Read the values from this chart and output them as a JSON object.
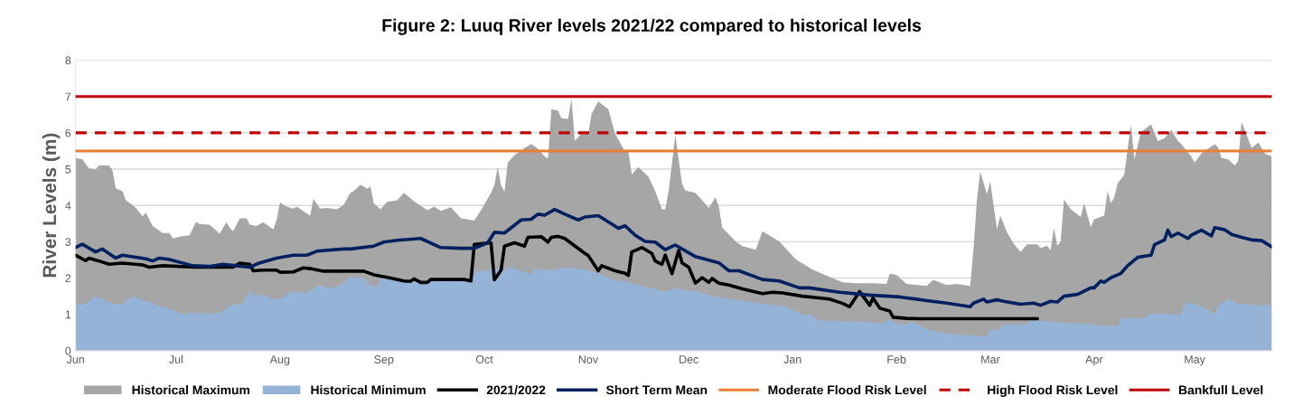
{
  "chart_data": {
    "type": "area",
    "title": "Figure 2: Luuq River levels 2021/22 compared to historical levels",
    "ylabel": "River Levels (m)",
    "xlim": [
      "2021-06-01",
      "2022-05-24"
    ],
    "xticks": [
      {
        "value": "2021-06-01",
        "label": "Jun"
      },
      {
        "value": "2021-07-01",
        "label": "Jul"
      },
      {
        "value": "2021-08-01",
        "label": "Aug"
      },
      {
        "value": "2021-09-01",
        "label": "Sep"
      },
      {
        "value": "2021-10-01",
        "label": "Oct"
      },
      {
        "value": "2021-11-01",
        "label": "Nov"
      },
      {
        "value": "2021-12-01",
        "label": "Dec"
      },
      {
        "value": "2022-01-01",
        "label": "Jan"
      },
      {
        "value": "2022-02-01",
        "label": "Feb"
      },
      {
        "value": "2022-03-01",
        "label": "Mar"
      },
      {
        "value": "2022-04-01",
        "label": "Apr"
      },
      {
        "value": "2022-05-01",
        "label": "May"
      }
    ],
    "ylim": [
      0,
      8
    ],
    "yticks": [
      0,
      1,
      2,
      3,
      4,
      5,
      6,
      7,
      8
    ],
    "grid": "y",
    "legend": "bottom",
    "series": [
      {
        "name": "Historical Maximum",
        "color": "#a6a6a6",
        "x": [
          "2021-06-01",
          "2021-06-03",
          "2021-06-05",
          "2021-06-07",
          "2021-06-08",
          "2021-06-11",
          "2021-06-12",
          "2021-06-13",
          "2021-06-15",
          "2021-06-16",
          "2021-06-18",
          "2021-06-19",
          "2021-06-21",
          "2021-06-22",
          "2021-06-24",
          "2021-06-27",
          "2021-06-29",
          "2021-06-30",
          "2021-07-02",
          "2021-07-05",
          "2021-07-07",
          "2021-07-08",
          "2021-07-11",
          "2021-07-14",
          "2021-07-16",
          "2021-07-17",
          "2021-07-18",
          "2021-07-20",
          "2021-07-22",
          "2021-07-23",
          "2021-07-25",
          "2021-07-27",
          "2021-07-30",
          "2021-07-31",
          "2021-08-01",
          "2021-08-03",
          "2021-08-05",
          "2021-08-06",
          "2021-08-10",
          "2021-08-11",
          "2021-08-13",
          "2021-08-15",
          "2021-08-18",
          "2021-08-20",
          "2021-08-22",
          "2021-08-23",
          "2021-08-25",
          "2021-08-27",
          "2021-08-28",
          "2021-08-29",
          "2021-08-31",
          "2021-09-02",
          "2021-09-05",
          "2021-09-07",
          "2021-09-10",
          "2021-09-14",
          "2021-09-16",
          "2021-09-18",
          "2021-09-21",
          "2021-09-24",
          "2021-09-28",
          "2021-09-30",
          "2021-10-03",
          "2021-10-04",
          "2021-10-05",
          "2021-10-06",
          "2021-10-07",
          "2021-10-08",
          "2021-10-10",
          "2021-10-13",
          "2021-10-15",
          "2021-10-17",
          "2021-10-19",
          "2021-10-20",
          "2021-10-21",
          "2021-10-23",
          "2021-10-24",
          "2021-10-26",
          "2021-10-27",
          "2021-10-28",
          "2021-10-30",
          "2021-11-01",
          "2021-11-02",
          "2021-11-04",
          "2021-11-07",
          "2021-11-09",
          "2021-11-12",
          "2021-11-13",
          "2021-11-14",
          "2021-11-16",
          "2021-11-19",
          "2021-11-21",
          "2021-11-23",
          "2021-11-24",
          "2021-11-25",
          "2021-11-27",
          "2021-11-29",
          "2021-11-30",
          "2021-12-03",
          "2021-12-05",
          "2021-12-07",
          "2021-12-09",
          "2021-12-10",
          "2021-12-11",
          "2021-12-15",
          "2021-12-17",
          "2021-12-21",
          "2021-12-23",
          "2021-12-28",
          "2022-01-02",
          "2022-01-07",
          "2022-01-12",
          "2022-01-16",
          "2022-01-20",
          "2022-01-25",
          "2022-01-29",
          "2022-01-30",
          "2022-02-01",
          "2022-02-04",
          "2022-02-10",
          "2022-02-12",
          "2022-02-16",
          "2022-02-19",
          "2022-02-23",
          "2022-02-24",
          "2022-02-25",
          "2022-02-26",
          "2022-02-28",
          "2022-03-01",
          "2022-03-03",
          "2022-03-04",
          "2022-03-06",
          "2022-03-08",
          "2022-03-10",
          "2022-03-12",
          "2022-03-15",
          "2022-03-16",
          "2022-03-18",
          "2022-03-19",
          "2022-03-20",
          "2022-03-21",
          "2022-03-22",
          "2022-03-23",
          "2022-03-25",
          "2022-03-28",
          "2022-03-29",
          "2022-03-31",
          "2022-04-01",
          "2022-04-04",
          "2022-04-05",
          "2022-04-06",
          "2022-04-07",
          "2022-04-08",
          "2022-04-10",
          "2022-04-11",
          "2022-04-12",
          "2022-04-13",
          "2022-04-15",
          "2022-04-18",
          "2022-04-20",
          "2022-04-22",
          "2022-04-24",
          "2022-04-26",
          "2022-04-27",
          "2022-04-30",
          "2022-05-01",
          "2022-05-03",
          "2022-05-05",
          "2022-05-07",
          "2022-05-08",
          "2022-05-09",
          "2022-05-11",
          "2022-05-13",
          "2022-05-14",
          "2022-05-15",
          "2022-05-18",
          "2022-05-20",
          "2022-05-22",
          "2022-05-23",
          "2022-05-24"
        ],
        "values": [
          5.31,
          5.27,
          5.02,
          4.99,
          5.1,
          5.1,
          4.97,
          4.47,
          4.39,
          4.14,
          4.01,
          3.93,
          3.7,
          3.8,
          3.43,
          3.24,
          3.24,
          3.09,
          3.14,
          3.18,
          3.55,
          3.49,
          3.47,
          3.22,
          3.54,
          3.39,
          3.29,
          3.64,
          3.65,
          3.47,
          3.43,
          3.54,
          3.34,
          3.6,
          4.08,
          3.97,
          3.91,
          3.97,
          3.72,
          4.18,
          3.91,
          3.93,
          3.89,
          4.01,
          4.35,
          4.39,
          4.57,
          4.46,
          4.52,
          4.06,
          3.89,
          4.1,
          4.14,
          4.35,
          4.12,
          3.87,
          3.97,
          3.85,
          3.95,
          3.65,
          3.58,
          3.87,
          4.35,
          4.56,
          5.06,
          4.56,
          4.37,
          5.18,
          5.39,
          5.58,
          5.69,
          5.56,
          5.35,
          5.29,
          6.65,
          6.61,
          6.4,
          6.38,
          6.94,
          5.77,
          5.98,
          5.98,
          6.52,
          6.86,
          6.65,
          5.98,
          5.48,
          5.48,
          4.85,
          5.06,
          4.79,
          4.39,
          3.89,
          3.89,
          4.39,
          5.94,
          4.6,
          4.41,
          4.35,
          4.14,
          3.93,
          4.22,
          3.97,
          3.39,
          3.01,
          2.88,
          2.78,
          3.29,
          3.01,
          2.51,
          2.23,
          2.03,
          1.88,
          1.86,
          1.86,
          1.84,
          2.12,
          2.09,
          1.84,
          1.78,
          1.95,
          1.81,
          1.84,
          1.78,
          2.8,
          4.14,
          4.93,
          4.31,
          4.66,
          3.34,
          3.72,
          3.26,
          2.95,
          2.72,
          2.93,
          2.93,
          2.82,
          2.89,
          2.76,
          3.39,
          2.89,
          3.01,
          4.16,
          3.9,
          3.68,
          4.06,
          3.4,
          3.62,
          3.72,
          4.39,
          4.06,
          4.22,
          4.6,
          4.85,
          5.56,
          6.23,
          5.27,
          6.02,
          6.23,
          5.77,
          5.85,
          6.08,
          5.77,
          5.69,
          5.35,
          5.18,
          5.43,
          5.56,
          5.69,
          5.6,
          5.31,
          5.27,
          5.1,
          5.23,
          6.3,
          5.58,
          5.73,
          5.43,
          5.39,
          5.35
        ]
      },
      {
        "name": "Historical Minimum",
        "color": "#95b3d7",
        "x": [
          "2021-06-01",
          "2021-06-04",
          "2021-06-07",
          "2021-06-12",
          "2021-06-15",
          "2021-06-18",
          "2021-06-23",
          "2021-06-27",
          "2021-07-01",
          "2021-07-03",
          "2021-07-06",
          "2021-07-08",
          "2021-07-10",
          "2021-07-11",
          "2021-07-14",
          "2021-07-16",
          "2021-07-18",
          "2021-07-21",
          "2021-07-23",
          "2021-07-24",
          "2021-07-28",
          "2021-07-30",
          "2021-08-02",
          "2021-08-04",
          "2021-08-09",
          "2021-08-13",
          "2021-08-16",
          "2021-08-19",
          "2021-08-22",
          "2021-08-24",
          "2021-08-26",
          "2021-08-28",
          "2021-08-30",
          "2021-08-31",
          "2021-09-11",
          "2021-09-16",
          "2021-09-26",
          "2021-09-29",
          "2021-10-02",
          "2021-10-03",
          "2021-10-07",
          "2021-10-09",
          "2021-10-13",
          "2021-10-15",
          "2021-10-16",
          "2021-10-21",
          "2021-10-26",
          "2021-10-31",
          "2021-11-04",
          "2021-11-08",
          "2021-11-12",
          "2021-11-17",
          "2021-11-24",
          "2021-11-27",
          "2021-12-03",
          "2021-12-08",
          "2021-12-14",
          "2021-12-23",
          "2021-12-30",
          "2022-01-04",
          "2022-01-07",
          "2022-01-08",
          "2022-01-15",
          "2022-01-24",
          "2022-01-27",
          "2022-01-30",
          "2022-02-02",
          "2022-02-06",
          "2022-02-10",
          "2022-02-15",
          "2022-02-20",
          "2022-02-24",
          "2022-02-28",
          "2022-03-01",
          "2022-03-03",
          "2022-03-05",
          "2022-03-11",
          "2022-03-13",
          "2022-03-23",
          "2022-04-01",
          "2022-04-02",
          "2022-04-08",
          "2022-04-09",
          "2022-04-16",
          "2022-04-18",
          "2022-04-27",
          "2022-04-28",
          "2022-05-01",
          "2022-05-05",
          "2022-05-07",
          "2022-05-08",
          "2022-05-11",
          "2022-05-14",
          "2022-05-20",
          "2022-05-24"
        ],
        "values": [
          1.25,
          1.3,
          1.5,
          1.3,
          1.28,
          1.5,
          1.34,
          1.21,
          1.09,
          1.0,
          1.07,
          1.0,
          1.06,
          1.0,
          1.05,
          1.17,
          1.28,
          1.3,
          1.65,
          1.55,
          1.5,
          1.42,
          1.46,
          1.63,
          1.61,
          1.81,
          1.71,
          1.8,
          2.03,
          2.01,
          2.0,
          1.8,
          1.76,
          2.0,
          1.96,
          1.92,
          1.92,
          2.2,
          2.2,
          2.28,
          2.23,
          2.3,
          2.17,
          2.09,
          2.26,
          2.22,
          2.3,
          2.23,
          2.15,
          1.96,
          1.9,
          1.78,
          1.63,
          1.73,
          1.63,
          1.5,
          1.42,
          1.3,
          1.21,
          1.0,
          0.98,
          0.84,
          0.81,
          0.79,
          0.75,
          0.84,
          0.71,
          0.78,
          0.59,
          0.48,
          0.44,
          0.42,
          0.39,
          0.59,
          0.54,
          0.73,
          0.71,
          0.84,
          0.77,
          0.73,
          0.69,
          0.69,
          0.89,
          0.89,
          1.03,
          0.98,
          1.31,
          1.3,
          1.13,
          1.0,
          1.25,
          1.42,
          1.3,
          1.25,
          1.25
        ]
      },
      {
        "name": "2021/2022",
        "type": "line",
        "color": "#000000",
        "x": [
          "2021-06-01",
          "2021-06-04",
          "2021-06-05",
          "2021-06-08",
          "2021-06-11",
          "2021-06-15",
          "2021-06-21",
          "2021-06-23",
          "2021-06-27",
          "2021-07-07",
          "2021-07-18",
          "2021-07-20",
          "2021-07-23",
          "2021-07-24",
          "2021-07-27",
          "2021-07-31",
          "2021-08-01",
          "2021-08-05",
          "2021-08-08",
          "2021-08-10",
          "2021-08-14",
          "2021-08-21",
          "2021-08-26",
          "2021-08-29",
          "2021-09-02",
          "2021-09-07",
          "2021-09-09",
          "2021-09-10",
          "2021-09-12",
          "2021-09-14",
          "2021-09-15",
          "2021-09-25",
          "2021-09-27",
          "2021-09-28",
          "2021-10-03",
          "2021-10-04",
          "2021-10-06",
          "2021-10-07",
          "2021-10-10",
          "2021-10-13",
          "2021-10-14",
          "2021-10-18",
          "2021-10-20",
          "2021-10-21",
          "2021-10-23",
          "2021-10-25",
          "2021-10-31",
          "2021-11-01",
          "2021-11-04",
          "2021-11-05",
          "2021-11-09",
          "2021-11-12",
          "2021-11-13",
          "2021-11-14",
          "2021-11-17",
          "2021-11-20",
          "2021-11-21",
          "2021-11-23",
          "2021-11-24",
          "2021-11-26",
          "2021-11-28",
          "2021-11-29",
          "2021-12-01",
          "2021-12-03",
          "2021-12-05",
          "2021-12-07",
          "2021-12-08",
          "2021-12-10",
          "2021-12-13",
          "2021-12-17",
          "2021-12-23",
          "2021-12-26",
          "2021-12-29",
          "2022-01-04",
          "2022-01-12",
          "2022-01-16",
          "2022-01-18",
          "2022-01-21",
          "2022-01-24",
          "2022-01-25",
          "2022-01-27",
          "2022-01-30",
          "2022-01-31",
          "2022-02-04",
          "2022-02-08",
          "2022-03-15"
        ],
        "values": [
          2.63,
          2.48,
          2.55,
          2.47,
          2.38,
          2.41,
          2.36,
          2.3,
          2.34,
          2.3,
          2.3,
          2.41,
          2.38,
          2.2,
          2.22,
          2.22,
          2.16,
          2.17,
          2.28,
          2.26,
          2.19,
          2.19,
          2.19,
          2.09,
          2.02,
          1.92,
          1.91,
          1.98,
          1.88,
          1.88,
          1.96,
          1.96,
          1.92,
          2.93,
          2.97,
          1.95,
          2.22,
          2.88,
          2.97,
          2.88,
          3.12,
          3.14,
          2.99,
          3.12,
          3.15,
          3.09,
          2.68,
          2.62,
          2.2,
          2.34,
          2.2,
          2.13,
          2.07,
          2.72,
          2.84,
          2.68,
          2.47,
          2.38,
          2.63,
          2.12,
          2.76,
          2.42,
          2.3,
          1.86,
          2.01,
          1.88,
          1.99,
          1.86,
          1.81,
          1.7,
          1.57,
          1.61,
          1.59,
          1.5,
          1.42,
          1.3,
          1.21,
          1.63,
          1.25,
          1.45,
          1.17,
          1.09,
          0.92,
          0.89,
          0.88,
          0.88
        ]
      },
      {
        "name": "Short Term Mean",
        "type": "line",
        "color": "#002060",
        "x": [
          "2021-06-01",
          "2021-06-03",
          "2021-06-07",
          "2021-06-09",
          "2021-06-13",
          "2021-06-15",
          "2021-06-22",
          "2021-06-24",
          "2021-06-26",
          "2021-06-29",
          "2021-07-06",
          "2021-07-11",
          "2021-07-15",
          "2021-07-19",
          "2021-07-23",
          "2021-07-26",
          "2021-07-31",
          "2021-08-05",
          "2021-08-09",
          "2021-08-12",
          "2021-08-20",
          "2021-08-22",
          "2021-08-29",
          "2021-09-01",
          "2021-09-05",
          "2021-09-12",
          "2021-09-18",
          "2021-09-24",
          "2021-09-28",
          "2021-10-02",
          "2021-10-04",
          "2021-10-07",
          "2021-10-12",
          "2021-10-15",
          "2021-10-17",
          "2021-10-19",
          "2021-10-22",
          "2021-10-25",
          "2021-10-29",
          "2021-10-31",
          "2021-11-04",
          "2021-11-08",
          "2021-11-10",
          "2021-11-12",
          "2021-11-15",
          "2021-11-18",
          "2021-11-21",
          "2021-11-24",
          "2021-11-27",
          "2021-12-03",
          "2021-12-10",
          "2021-12-13",
          "2021-12-16",
          "2021-12-23",
          "2021-12-28",
          "2022-01-03",
          "2022-01-06",
          "2022-01-15",
          "2022-01-24",
          "2022-02-02",
          "2022-02-10",
          "2022-02-16",
          "2022-02-23",
          "2022-02-24",
          "2022-02-27",
          "2022-02-28",
          "2022-03-03",
          "2022-03-05",
          "2022-03-10",
          "2022-03-14",
          "2022-03-16",
          "2022-03-19",
          "2022-03-21",
          "2022-03-23",
          "2022-03-27",
          "2022-03-31",
          "2022-04-01",
          "2022-04-03",
          "2022-04-04",
          "2022-04-06",
          "2022-04-09",
          "2022-04-11",
          "2022-04-14",
          "2022-04-18",
          "2022-04-19",
          "2022-04-22",
          "2022-04-23",
          "2022-04-24",
          "2022-04-26",
          "2022-04-29",
          "2022-04-30",
          "2022-05-03",
          "2022-05-06",
          "2022-05-07",
          "2022-05-10",
          "2022-05-12",
          "2022-05-15",
          "2022-05-18",
          "2022-05-21",
          "2022-05-24"
        ],
        "values": [
          2.84,
          2.93,
          2.72,
          2.8,
          2.55,
          2.63,
          2.53,
          2.47,
          2.55,
          2.51,
          2.34,
          2.32,
          2.38,
          2.34,
          2.3,
          2.42,
          2.55,
          2.63,
          2.63,
          2.74,
          2.8,
          2.8,
          2.88,
          2.99,
          3.04,
          3.09,
          2.84,
          2.82,
          2.82,
          2.97,
          3.26,
          3.24,
          3.6,
          3.62,
          3.76,
          3.73,
          3.89,
          3.76,
          3.6,
          3.68,
          3.72,
          3.49,
          3.37,
          3.44,
          3.18,
          3.01,
          2.99,
          2.78,
          2.91,
          2.59,
          2.42,
          2.2,
          2.2,
          1.96,
          1.92,
          1.73,
          1.73,
          1.61,
          1.53,
          1.48,
          1.38,
          1.31,
          1.21,
          1.31,
          1.42,
          1.34,
          1.4,
          1.36,
          1.28,
          1.31,
          1.25,
          1.36,
          1.34,
          1.5,
          1.55,
          1.73,
          1.73,
          1.92,
          1.88,
          2.01,
          2.13,
          2.34,
          2.57,
          2.63,
          2.92,
          3.05,
          3.32,
          3.14,
          3.24,
          3.09,
          3.18,
          3.32,
          3.16,
          3.39,
          3.33,
          3.2,
          3.12,
          3.05,
          3.03,
          2.86
        ]
      }
    ],
    "ref_lines": [
      {
        "axis": "y",
        "value": 5.5,
        "label": "Moderate Flood Risk Level",
        "color": "#ed7d31",
        "line_style": "solid"
      },
      {
        "axis": "y",
        "value": 6,
        "label": "High Flood Risk Level",
        "color": "#c00000",
        "line_style": "dashed"
      },
      {
        "axis": "y",
        "value": 7,
        "label": "Bankfull Level",
        "color": "#c00000",
        "line_style": "solid"
      }
    ]
  }
}
